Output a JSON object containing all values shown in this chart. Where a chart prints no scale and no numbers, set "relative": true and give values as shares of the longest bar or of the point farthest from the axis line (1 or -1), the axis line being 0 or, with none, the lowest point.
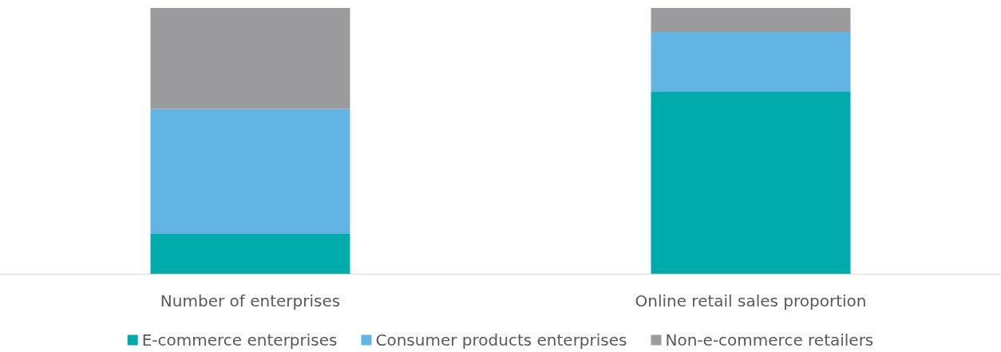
{
  "chart_data": {
    "type": "bar",
    "stacked": true,
    "relative": true,
    "categories": [
      "Number of enterprises",
      "Online retail sales proportion"
    ],
    "series": [
      {
        "name": "E-commerce enterprises",
        "color": "#00abab",
        "values": [
          0.15,
          0.685
        ]
      },
      {
        "name": "Consumer products enterprises",
        "color": "#62b4e5",
        "values": [
          0.47,
          0.225
        ]
      },
      {
        "name": "Non-e-commerce retailers",
        "color": "#9b9b9e",
        "values": [
          0.38,
          0.09
        ]
      }
    ],
    "legend": "bottom"
  }
}
